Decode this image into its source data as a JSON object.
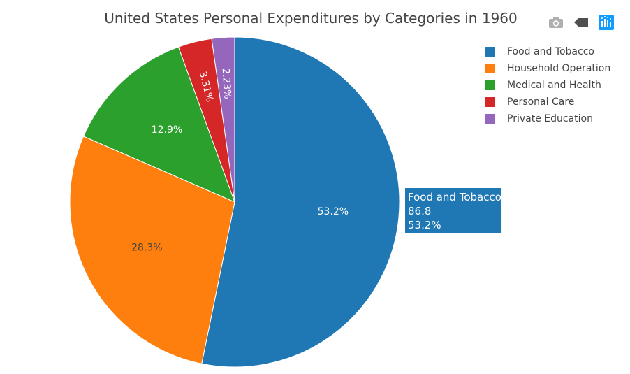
{
  "chart_data": {
    "type": "pie",
    "title": "United States Personal Expenditures by Categories in 1960",
    "labels": [
      "Food and Tobacco",
      "Household Operation",
      "Medical and Health",
      "Personal Care",
      "Private Education"
    ],
    "values": [
      86.8,
      46.2,
      21.1,
      5.4,
      3.64
    ],
    "percent_labels": [
      "53.2%",
      "28.3%",
      "12.9%",
      "3.31%",
      "2.23%"
    ],
    "colors": [
      "#1f77b4",
      "#ff7f0e",
      "#2ca02c",
      "#d62728",
      "#9467bd"
    ],
    "text_colors": [
      "#ffffff",
      "#444444",
      "#ffffff",
      "#ffffff",
      "#ffffff"
    ],
    "legend_position": "top-right"
  },
  "hover": {
    "label": "Food and Tobacco",
    "value": "86.8",
    "percent": "53.2%",
    "color": "#1f77b4"
  },
  "modebar": [
    {
      "name": "camera-icon",
      "title": "Download plot as a png"
    },
    {
      "name": "tag-icon",
      "title": "Toggle show closest data on hover"
    },
    {
      "name": "plotly-logo-icon",
      "title": "Produced with Plotly"
    }
  ]
}
